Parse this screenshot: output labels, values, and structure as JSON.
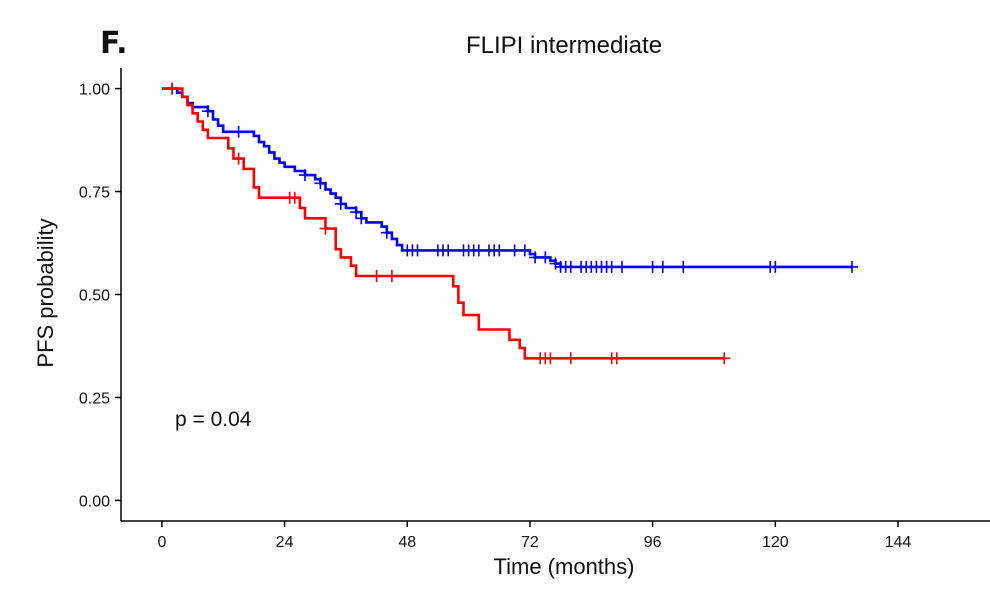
{
  "panel_label": "F.",
  "chart_data": {
    "type": "line",
    "subtype": "kaplan-meier",
    "title": "FLIPI intermediate",
    "xlabel": "Time (months)",
    "ylabel": "PFS probability",
    "xlim": [
      -8,
      162
    ],
    "ylim": [
      -0.05,
      1.05
    ],
    "xticks": [
      0,
      24,
      48,
      72,
      96,
      120,
      144
    ],
    "xtick_labels": [
      "0",
      "24",
      "48",
      "72",
      "96",
      "120",
      "144"
    ],
    "yticks": [
      0,
      0.25,
      0.5,
      0.75,
      1.0
    ],
    "ytick_labels": [
      "0.00",
      "0.25",
      "0.50",
      "0.75",
      "1.00"
    ],
    "grid": false,
    "legend": "none",
    "annotation": "p = 0.04",
    "series": [
      {
        "color": "#0000ff",
        "steps": [
          [
            0,
            1.0
          ],
          [
            3,
            0.99
          ],
          [
            4,
            0.98
          ],
          [
            5,
            0.965
          ],
          [
            6,
            0.955
          ],
          [
            9,
            0.945
          ],
          [
            10,
            0.925
          ],
          [
            11,
            0.91
          ],
          [
            12,
            0.895
          ],
          [
            18,
            0.885
          ],
          [
            19,
            0.87
          ],
          [
            20,
            0.86
          ],
          [
            21,
            0.845
          ],
          [
            22,
            0.83
          ],
          [
            23,
            0.82
          ],
          [
            24,
            0.81
          ],
          [
            26,
            0.8
          ],
          [
            28,
            0.79
          ],
          [
            30,
            0.78
          ],
          [
            31,
            0.77
          ],
          [
            32,
            0.755
          ],
          [
            33,
            0.745
          ],
          [
            34,
            0.735
          ],
          [
            35,
            0.72
          ],
          [
            36,
            0.71
          ],
          [
            38,
            0.7
          ],
          [
            39,
            0.685
          ],
          [
            40,
            0.675
          ],
          [
            43,
            0.665
          ],
          [
            44,
            0.65
          ],
          [
            45,
            0.635
          ],
          [
            46,
            0.62
          ],
          [
            47,
            0.607
          ],
          [
            72,
            0.598
          ],
          [
            73,
            0.59
          ],
          [
            76,
            0.582
          ],
          [
            77,
            0.575
          ],
          [
            78,
            0.567
          ],
          [
            135,
            0.567
          ]
        ],
        "censor_x": [
          2,
          9,
          15,
          28,
          31,
          35,
          38,
          39,
          44,
          48,
          49,
          50,
          54,
          55,
          56,
          59,
          60,
          61,
          62,
          64,
          65,
          66,
          69,
          71,
          73,
          75,
          77,
          78,
          79,
          80,
          82,
          83,
          84,
          85,
          86,
          87,
          88,
          90,
          96,
          98,
          102,
          119,
          120,
          135
        ]
      },
      {
        "color": "#ff0000",
        "steps": [
          [
            0,
            1.0
          ],
          [
            4,
            0.98
          ],
          [
            5,
            0.96
          ],
          [
            6,
            0.94
          ],
          [
            7,
            0.92
          ],
          [
            8,
            0.9
          ],
          [
            9,
            0.88
          ],
          [
            13,
            0.855
          ],
          [
            14,
            0.83
          ],
          [
            16,
            0.805
          ],
          [
            18,
            0.76
          ],
          [
            19,
            0.735
          ],
          [
            27,
            0.71
          ],
          [
            28,
            0.685
          ],
          [
            32,
            0.66
          ],
          [
            34,
            0.61
          ],
          [
            35,
            0.59
          ],
          [
            37,
            0.57
          ],
          [
            38,
            0.545
          ],
          [
            57,
            0.52
          ],
          [
            58,
            0.48
          ],
          [
            59,
            0.45
          ],
          [
            62,
            0.415
          ],
          [
            68,
            0.39
          ],
          [
            70,
            0.37
          ],
          [
            71,
            0.345
          ],
          [
            110,
            0.345
          ]
        ],
        "censor_x": [
          2,
          15,
          25,
          26,
          32,
          42,
          45,
          74,
          75,
          76,
          80,
          88,
          89,
          110
        ]
      }
    ]
  }
}
